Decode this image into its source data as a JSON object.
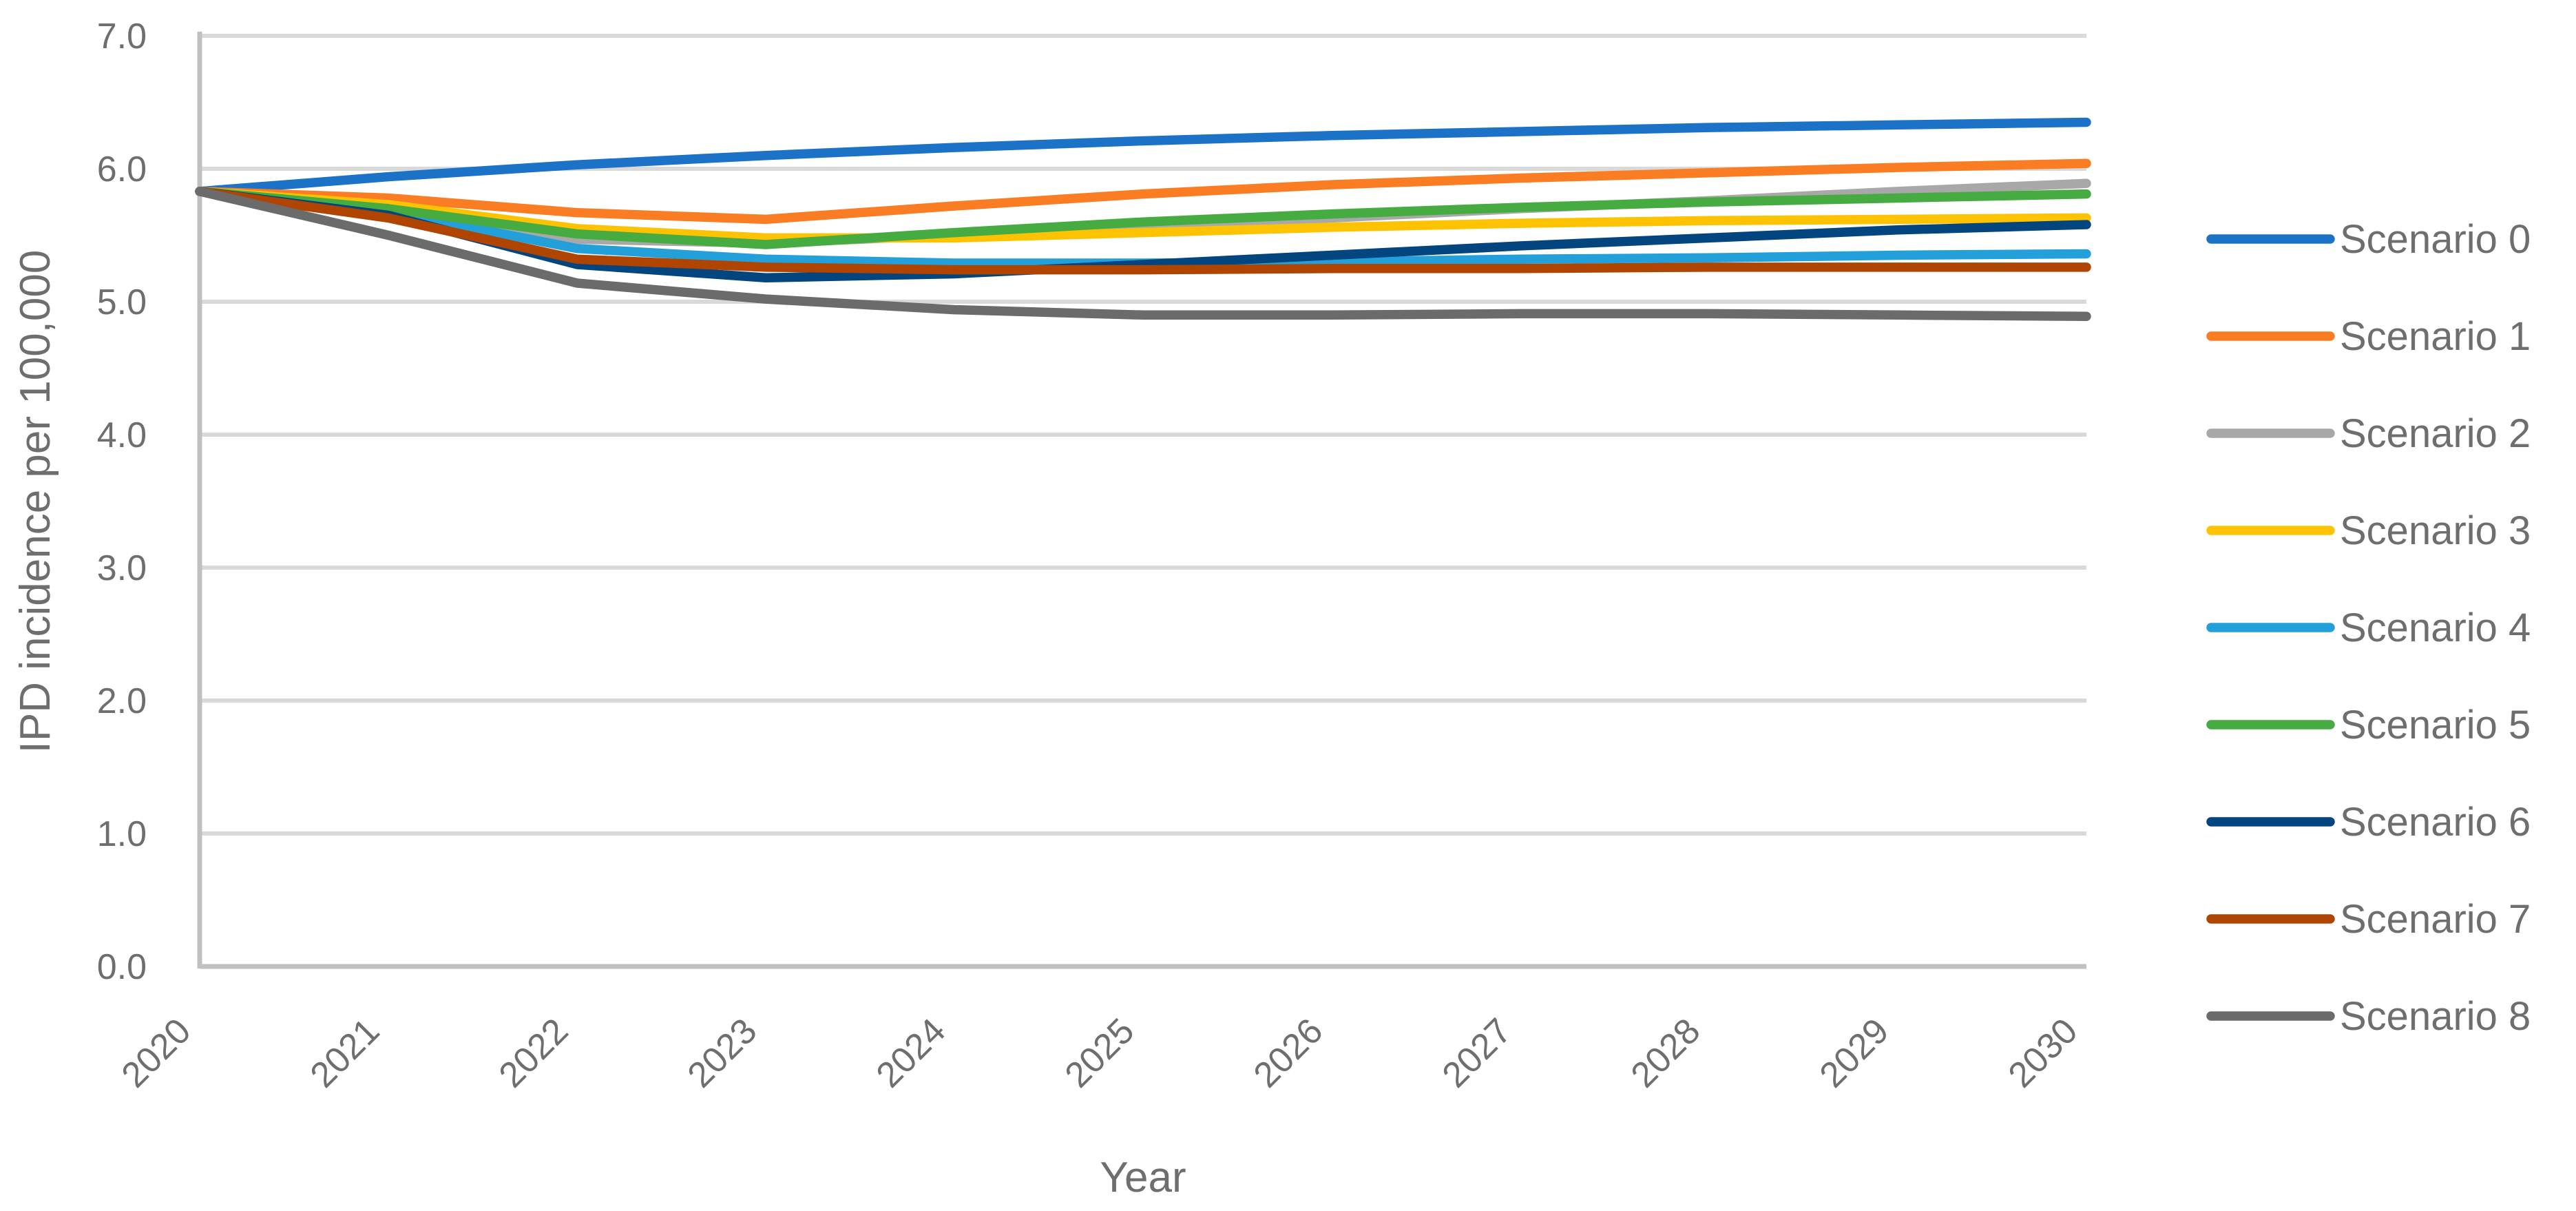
{
  "chart_data": {
    "type": "line",
    "title": "",
    "xlabel": "Year",
    "ylabel": "IPD incidence per 100,000",
    "x_categories": [
      "2020",
      "2021",
      "2022",
      "2023",
      "2024",
      "2025",
      "2026",
      "2027",
      "2028",
      "2029",
      "2030"
    ],
    "ylim": [
      0.0,
      7.0
    ],
    "ytick_step": 1.0,
    "ytick_labels": [
      "0.0",
      "1.0",
      "2.0",
      "3.0",
      "4.0",
      "5.0",
      "6.0",
      "7.0"
    ],
    "grid": "horizontal-only",
    "legend_position": "right",
    "series": [
      {
        "name": "Scenario 0",
        "color": "#1C72C6",
        "values": [
          5.83,
          5.94,
          6.03,
          6.1,
          6.16,
          6.21,
          6.25,
          6.28,
          6.31,
          6.33,
          6.35
        ]
      },
      {
        "name": "Scenario 1",
        "color": "#FB7D23",
        "values": [
          5.83,
          5.78,
          5.67,
          5.62,
          5.72,
          5.81,
          5.88,
          5.93,
          5.97,
          6.01,
          6.04
        ]
      },
      {
        "name": "Scenario 2",
        "color": "#A8A8A8",
        "values": [
          5.83,
          5.72,
          5.47,
          5.44,
          5.5,
          5.57,
          5.63,
          5.7,
          5.76,
          5.83,
          5.89
        ]
      },
      {
        "name": "Scenario 3",
        "color": "#FDC303",
        "values": [
          5.83,
          5.73,
          5.55,
          5.48,
          5.48,
          5.52,
          5.56,
          5.59,
          5.61,
          5.62,
          5.63
        ]
      },
      {
        "name": "Scenario 4",
        "color": "#23A0D9",
        "values": [
          5.83,
          5.68,
          5.4,
          5.32,
          5.29,
          5.29,
          5.3,
          5.32,
          5.33,
          5.35,
          5.36
        ]
      },
      {
        "name": "Scenario 5",
        "color": "#46AC42",
        "values": [
          5.83,
          5.7,
          5.51,
          5.43,
          5.52,
          5.6,
          5.66,
          5.71,
          5.75,
          5.78,
          5.81
        ]
      },
      {
        "name": "Scenario 6",
        "color": "#03457E",
        "values": [
          5.83,
          5.65,
          5.28,
          5.18,
          5.21,
          5.28,
          5.35,
          5.42,
          5.48,
          5.54,
          5.58
        ]
      },
      {
        "name": "Scenario 7",
        "color": "#B04502",
        "values": [
          5.83,
          5.63,
          5.32,
          5.26,
          5.24,
          5.24,
          5.25,
          5.25,
          5.26,
          5.26,
          5.26
        ]
      },
      {
        "name": "Scenario 8",
        "color": "#6B6B6B",
        "values": [
          5.83,
          5.5,
          5.14,
          5.02,
          4.94,
          4.9,
          4.9,
          4.91,
          4.91,
          4.9,
          4.89
        ]
      }
    ],
    "theme": {
      "gridline_color": "#D9D9D9",
      "axis_color": "#C0C0C0",
      "text_color": "#6E6E6E",
      "background": "#FFFFFF"
    }
  }
}
